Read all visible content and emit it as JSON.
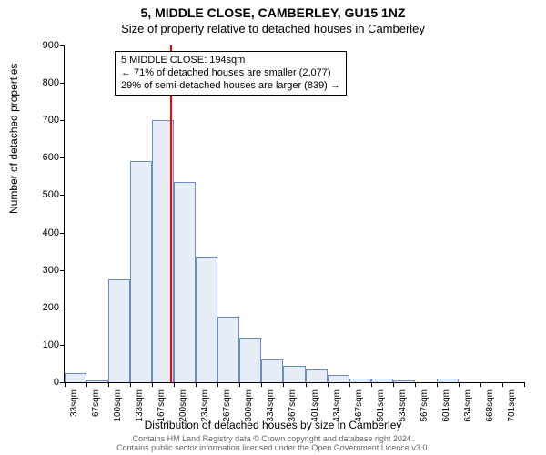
{
  "title": "5, MIDDLE CLOSE, CAMBERLEY, GU15 1NZ",
  "subtitle": "Size of property relative to detached houses in Camberley",
  "ylabel": "Number of detached properties",
  "xlabel": "Distribution of detached houses by size in Camberley",
  "footer_line1": "Contains HM Land Registry data © Crown copyright and database right 2024.",
  "footer_line2": "Contains public sector information licensed under the Open Government Licence v3.0.",
  "chart": {
    "type": "histogram",
    "ymin": 0,
    "ymax": 900,
    "ytick_step": 100,
    "background_color": "#ffffff",
    "axis_color": "#000000",
    "bar_fill": "#e6edf7",
    "bar_stroke": "#6a8cc7",
    "refline_value": 194,
    "refline_color": "#ff0000",
    "categories": [
      "33sqm",
      "67sqm",
      "100sqm",
      "133sqm",
      "167sqm",
      "200sqm",
      "234sqm",
      "267sqm",
      "300sqm",
      "334sqm",
      "367sqm",
      "401sqm",
      "434sqm",
      "467sqm",
      "501sqm",
      "534sqm",
      "567sqm",
      "601sqm",
      "634sqm",
      "668sqm",
      "701sqm"
    ],
    "values": [
      25,
      5,
      275,
      590,
      700,
      535,
      335,
      175,
      120,
      60,
      45,
      35,
      20,
      10,
      10,
      5,
      0,
      10,
      0,
      0,
      0
    ]
  },
  "info_box": {
    "line1": "5 MIDDLE CLOSE: 194sqm",
    "line2": "← 71% of detached houses are smaller (2,077)",
    "line3": "29% of semi-detached houses are larger (839) →"
  },
  "style": {
    "title_fontsize": 14,
    "subtitle_fontsize": 13,
    "axis_label_fontsize": 12,
    "tick_fontsize": 11,
    "xtick_fontsize": 10,
    "infobox_fontsize": 11,
    "footer_fontsize": 9,
    "footer_color": "#666666"
  }
}
